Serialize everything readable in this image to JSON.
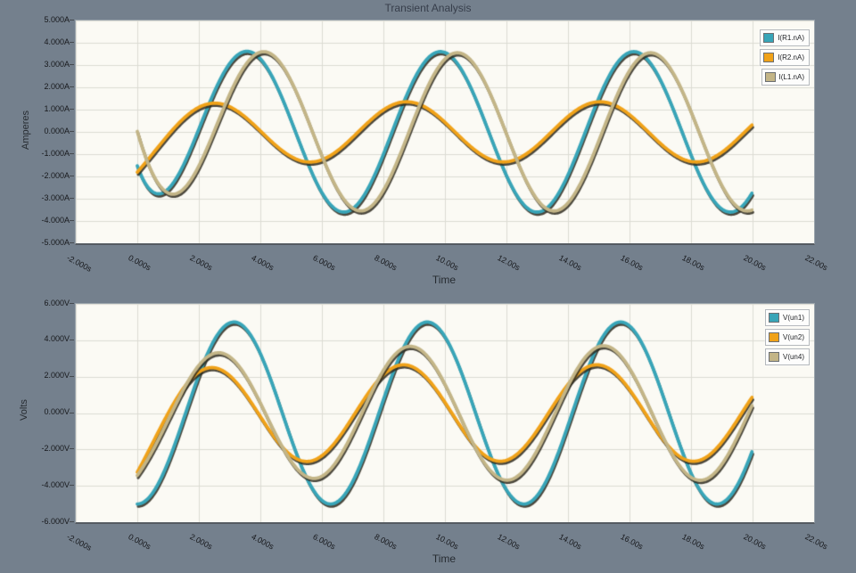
{
  "window": {
    "title": "Transient Analysis",
    "background_color": "#74808D",
    "plot_background_color": "#FBFAF4",
    "gridline_color": "#DBDBD3"
  },
  "chart_data": [
    {
      "type": "line",
      "ylabel": "Amperes",
      "xlabel": "Time",
      "x_unit": "s",
      "y_unit": "A",
      "x_range": [
        -2,
        22
      ],
      "y_range": [
        -5,
        5
      ],
      "grid": true,
      "legend_position": "top-right",
      "x_ticks": [
        {
          "value": -2,
          "label": "-2.000s"
        },
        {
          "value": 0,
          "label": "0.000s"
        },
        {
          "value": 2,
          "label": "2.000s"
        },
        {
          "value": 4,
          "label": "4.000s"
        },
        {
          "value": 6,
          "label": "6.000s"
        },
        {
          "value": 8,
          "label": "8.000s"
        },
        {
          "value": 10,
          "label": "10.00s"
        },
        {
          "value": 12,
          "label": "12.00s"
        },
        {
          "value": 14,
          "label": "14.00s"
        },
        {
          "value": 16,
          "label": "16.00s"
        },
        {
          "value": 18,
          "label": "18.00s"
        },
        {
          "value": 20,
          "label": "20.00s"
        },
        {
          "value": 22,
          "label": "22.00s"
        }
      ],
      "y_ticks": [
        {
          "value": 5,
          "label": "5.000A"
        },
        {
          "value": 4,
          "label": "4.000A"
        },
        {
          "value": 3,
          "label": "3.000A"
        },
        {
          "value": 2,
          "label": "2.000A"
        },
        {
          "value": 1,
          "label": "1.000A"
        },
        {
          "value": 0,
          "label": "0.000A"
        },
        {
          "value": -1,
          "label": "-1.000A"
        },
        {
          "value": -2,
          "label": "-2.000A"
        },
        {
          "value": -3,
          "label": "-3.000A"
        },
        {
          "value": -4,
          "label": "-4.000A"
        },
        {
          "value": -5,
          "label": "-5.000A"
        }
      ],
      "waveform_model": "v(t) = (A - ac*exp(-t/atau))*sin(omega*t - phase) + oc*exp(-t/otau), t in seconds from 0 to 20",
      "series": [
        {
          "name": "I(R1.nA)",
          "color": "#38A5B8",
          "amplitude": 3.6,
          "omega": 1,
          "phase": 2.0,
          "amp_decay_c": 0,
          "amp_decay_tau": 1,
          "offset_c": 1.75,
          "offset_tau": 0.75,
          "t_start": 0,
          "t_end": 20
        },
        {
          "name": "I(R2.nA)",
          "color": "#F0A219",
          "amplitude": 1.35,
          "omega": 1,
          "phase": 0.9,
          "amp_decay_c": 0,
          "amp_decay_tau": 1,
          "offset_c": -0.75,
          "offset_tau": 1.0,
          "t_start": 0,
          "t_end": 20
        },
        {
          "name": "I(L1.nA)",
          "color": "#C3B587",
          "amplitude": 3.55,
          "omega": 1,
          "phase": 2.55,
          "amp_decay_c": 0,
          "amp_decay_tau": 1,
          "offset_c": 2.0,
          "offset_tau": 1.1,
          "t_start": 0,
          "t_end": 20
        }
      ]
    },
    {
      "type": "line",
      "ylabel": "Volts",
      "xlabel": "Time",
      "x_unit": "s",
      "y_unit": "V",
      "x_range": [
        -2,
        22
      ],
      "y_range": [
        -6,
        6
      ],
      "grid": true,
      "legend_position": "top-right",
      "x_ticks": [
        {
          "value": -2,
          "label": "-2.000s"
        },
        {
          "value": 0,
          "label": "0.000s"
        },
        {
          "value": 2,
          "label": "2.000s"
        },
        {
          "value": 4,
          "label": "4.000s"
        },
        {
          "value": 6,
          "label": "6.000s"
        },
        {
          "value": 8,
          "label": "8.000s"
        },
        {
          "value": 10,
          "label": "10.00s"
        },
        {
          "value": 12,
          "label": "12.00s"
        },
        {
          "value": 14,
          "label": "14.00s"
        },
        {
          "value": 16,
          "label": "16.00s"
        },
        {
          "value": 18,
          "label": "18.00s"
        },
        {
          "value": 20,
          "label": "20.00s"
        },
        {
          "value": 22,
          "label": "22.00s"
        }
      ],
      "y_ticks": [
        {
          "value": 6,
          "label": "6.000V"
        },
        {
          "value": 4,
          "label": "4.000V"
        },
        {
          "value": 2,
          "label": "2.000V"
        },
        {
          "value": 0,
          "label": "0.000V"
        },
        {
          "value": -2,
          "label": "-2.000V"
        },
        {
          "value": -4,
          "label": "-4.000V"
        },
        {
          "value": -6,
          "label": "-6.000V"
        }
      ],
      "waveform_model": "v(t) = (A - ac*exp(-t/atau))*sin(omega*t - phase) + oc*exp(-t/otau), t in seconds from 0 to 20",
      "series": [
        {
          "name": "V(un1)",
          "color": "#38A5B8",
          "amplitude": 5.0,
          "omega": 1,
          "phase": 1.5708,
          "amp_decay_c": 0,
          "amp_decay_tau": 1,
          "offset_c": 0,
          "offset_tau": 1,
          "t_start": 0,
          "t_end": 20
        },
        {
          "name": "V(un2)",
          "color": "#F0A219",
          "amplitude": 2.65,
          "omega": 1,
          "phase": 0.8,
          "amp_decay_c": 0,
          "amp_decay_tau": 1,
          "offset_c": -1.35,
          "offset_tau": 1.1,
          "t_start": 0,
          "t_end": 20
        },
        {
          "name": "V(un4)",
          "color": "#C3B587",
          "amplitude": 3.7,
          "omega": 1,
          "phase": 1.02,
          "amp_decay_c": 0.85,
          "amp_decay_tau": 2.8,
          "offset_c": -1.0,
          "offset_tau": 0.9,
          "t_start": 0,
          "t_end": 20
        }
      ]
    }
  ]
}
